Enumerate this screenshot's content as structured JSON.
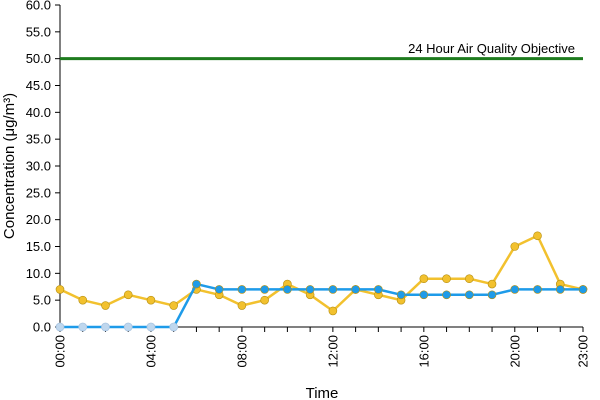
{
  "chart_data": {
    "type": "line",
    "title": "",
    "xlabel": "Time",
    "ylabel": "Concentration (μg/m³)",
    "ylim": [
      0,
      60
    ],
    "y_ticks": [
      "0.0",
      "5.0",
      "10.0",
      "15.0",
      "20.0",
      "25.0",
      "30.0",
      "35.0",
      "40.0",
      "45.0",
      "50.0",
      "55.0",
      "60.0"
    ],
    "x_tick_labels": [
      "00:00",
      "04:00",
      "08:00",
      "12:00",
      "16:00",
      "20:00",
      "23:00"
    ],
    "x_tick_hours": [
      0,
      4,
      8,
      12,
      16,
      20,
      23
    ],
    "x_hours": [
      0,
      1,
      2,
      3,
      4,
      5,
      6,
      7,
      8,
      9,
      10,
      11,
      12,
      13,
      14,
      15,
      16,
      17,
      18,
      19,
      20,
      21,
      22,
      23
    ],
    "grid": false,
    "series": [
      {
        "color": "#F2C12E",
        "values": [
          7,
          5,
          4,
          6,
          5,
          4,
          7,
          6,
          4,
          5,
          8,
          6,
          3,
          7,
          6,
          5,
          9,
          9,
          9,
          8,
          15,
          17,
          8,
          7
        ]
      },
      {
        "color": "#1E9BE9",
        "missing_color": "#BFD7EE",
        "missing_hours": [
          0,
          1,
          2,
          3,
          4,
          5
        ],
        "values": [
          0,
          0,
          0,
          0,
          0,
          0,
          8,
          7,
          7,
          7,
          7,
          7,
          7,
          7,
          7,
          6,
          6,
          6,
          6,
          6,
          7,
          7,
          7,
          7
        ]
      }
    ],
    "objective": {
      "label": "24 Hour Air Quality Objective",
      "value": 50,
      "color": "#1E7B1E"
    }
  }
}
